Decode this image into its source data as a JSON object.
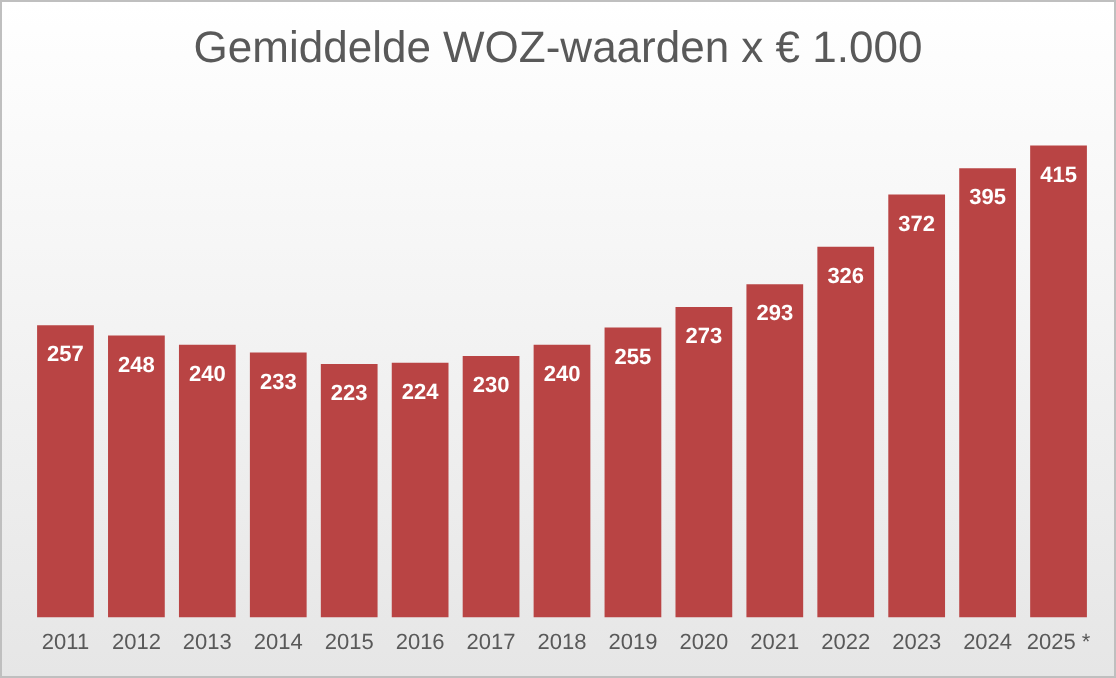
{
  "chart_data": {
    "type": "bar",
    "title": "Gemiddelde WOZ-waarden x € 1.000",
    "categories": [
      "2011",
      "2012",
      "2013",
      "2014",
      "2015",
      "2016",
      "2017",
      "2018",
      "2019",
      "2020",
      "2021",
      "2022",
      "2023",
      "2024",
      "2025 *"
    ],
    "values": [
      257,
      248,
      240,
      233,
      223,
      224,
      230,
      240,
      255,
      273,
      293,
      326,
      372,
      395,
      415
    ],
    "color": "#b94444",
    "data_labels": true,
    "grid": false,
    "legend": false
  }
}
